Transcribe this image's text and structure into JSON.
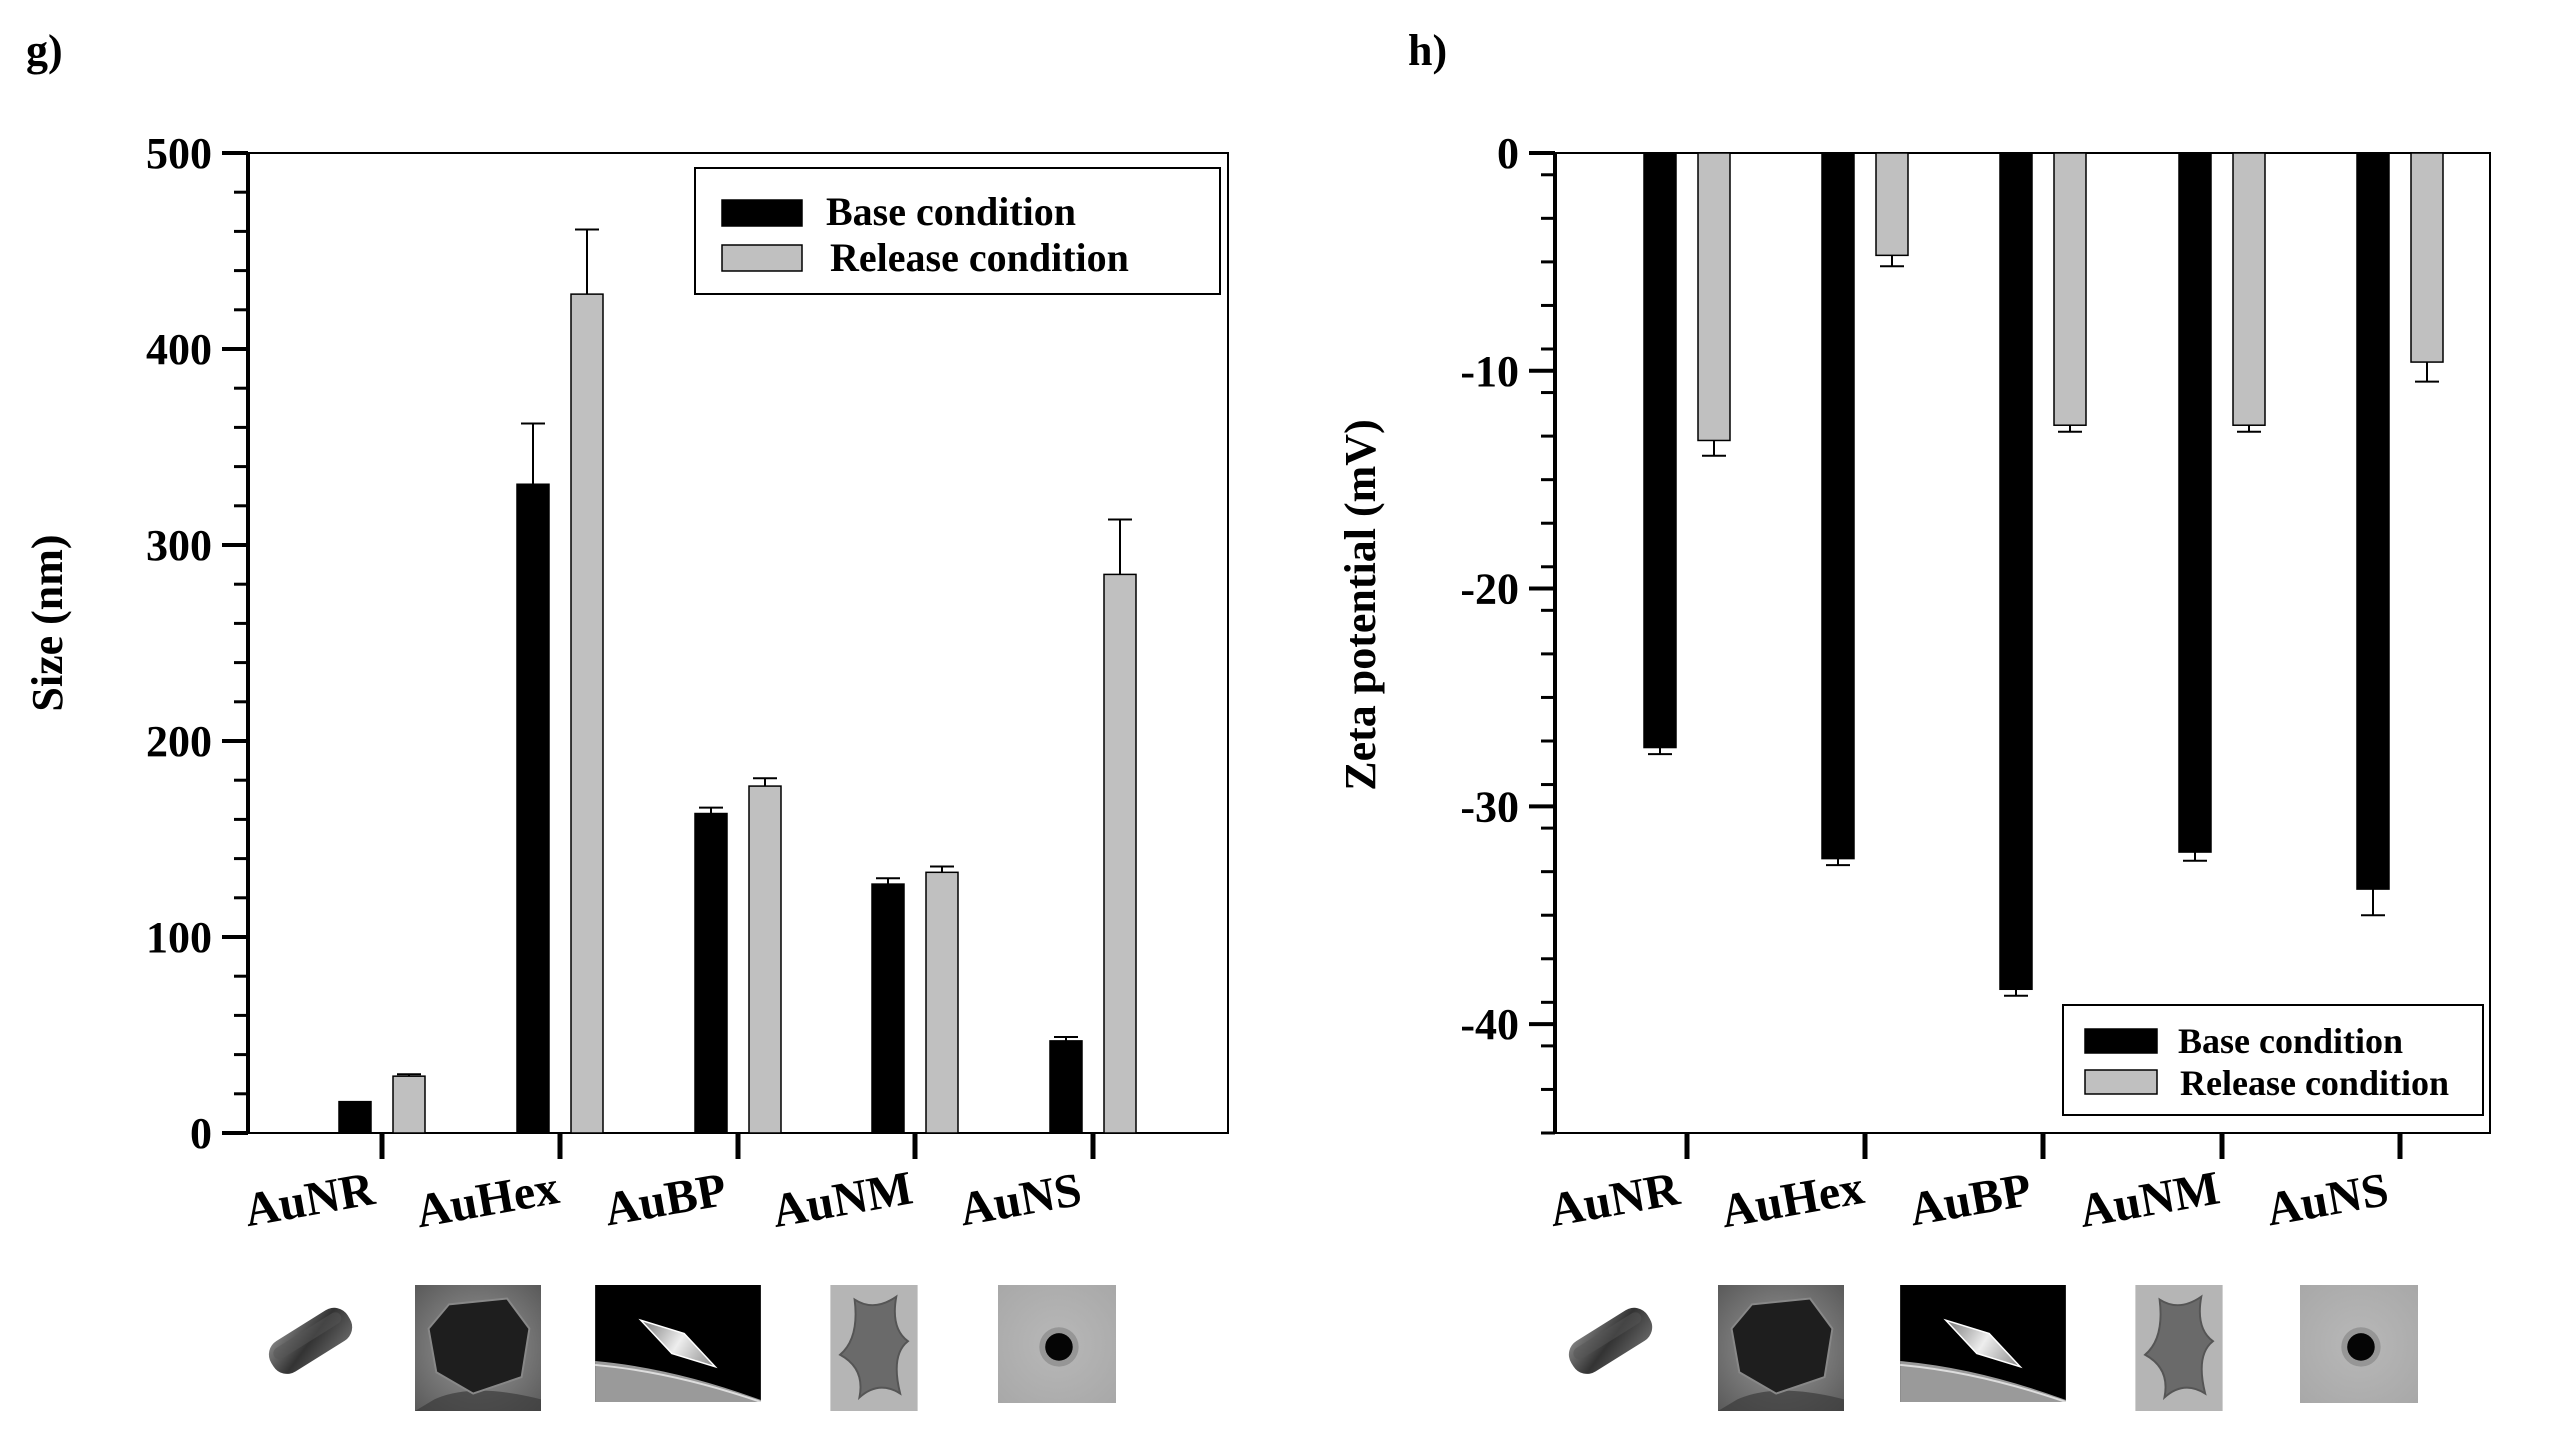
{
  "chart_data": [
    {
      "panel_label": "g)",
      "type": "bar",
      "ylabel": "Size (nm)",
      "ylim": [
        0,
        500
      ],
      "yticks": [
        0,
        100,
        200,
        300,
        400,
        500
      ],
      "categories": [
        "AuNR",
        "AuHex",
        "AuBP",
        "AuNM",
        "AuNS"
      ],
      "series": [
        {
          "name": "Base condition",
          "color": "#000000",
          "values": [
            16,
            331,
            163,
            127,
            47
          ],
          "errors": [
            0,
            31,
            3,
            3,
            2
          ]
        },
        {
          "name": "Release condition",
          "color": "#c0c0c0",
          "values": [
            29,
            428,
            177,
            133,
            285
          ],
          "errors": [
            1,
            33,
            4,
            3,
            28
          ]
        }
      ],
      "legend_position": "top-right"
    },
    {
      "panel_label": "h)",
      "type": "bar",
      "ylabel": "Zeta potential (mV)",
      "ylim": [
        -45,
        0
      ],
      "yticks": [
        0,
        -10,
        -20,
        -30,
        -40
      ],
      "categories": [
        "AuNR",
        "AuHex",
        "AuBP",
        "AuNM",
        "AuNS"
      ],
      "series": [
        {
          "name": "Base condition",
          "color": "#000000",
          "values": [
            -27.3,
            -32.4,
            -38.4,
            -32.1,
            -33.8
          ],
          "errors": [
            0.3,
            0.3,
            0.3,
            0.4,
            1.2
          ]
        },
        {
          "name": "Release condition",
          "color": "#c0c0c0",
          "values": [
            -13.2,
            -4.7,
            -12.5,
            -12.5,
            -9.6
          ],
          "errors": [
            0.7,
            0.5,
            0.3,
            0.3,
            0.9
          ]
        }
      ],
      "legend_position": "bottom-right"
    }
  ]
}
